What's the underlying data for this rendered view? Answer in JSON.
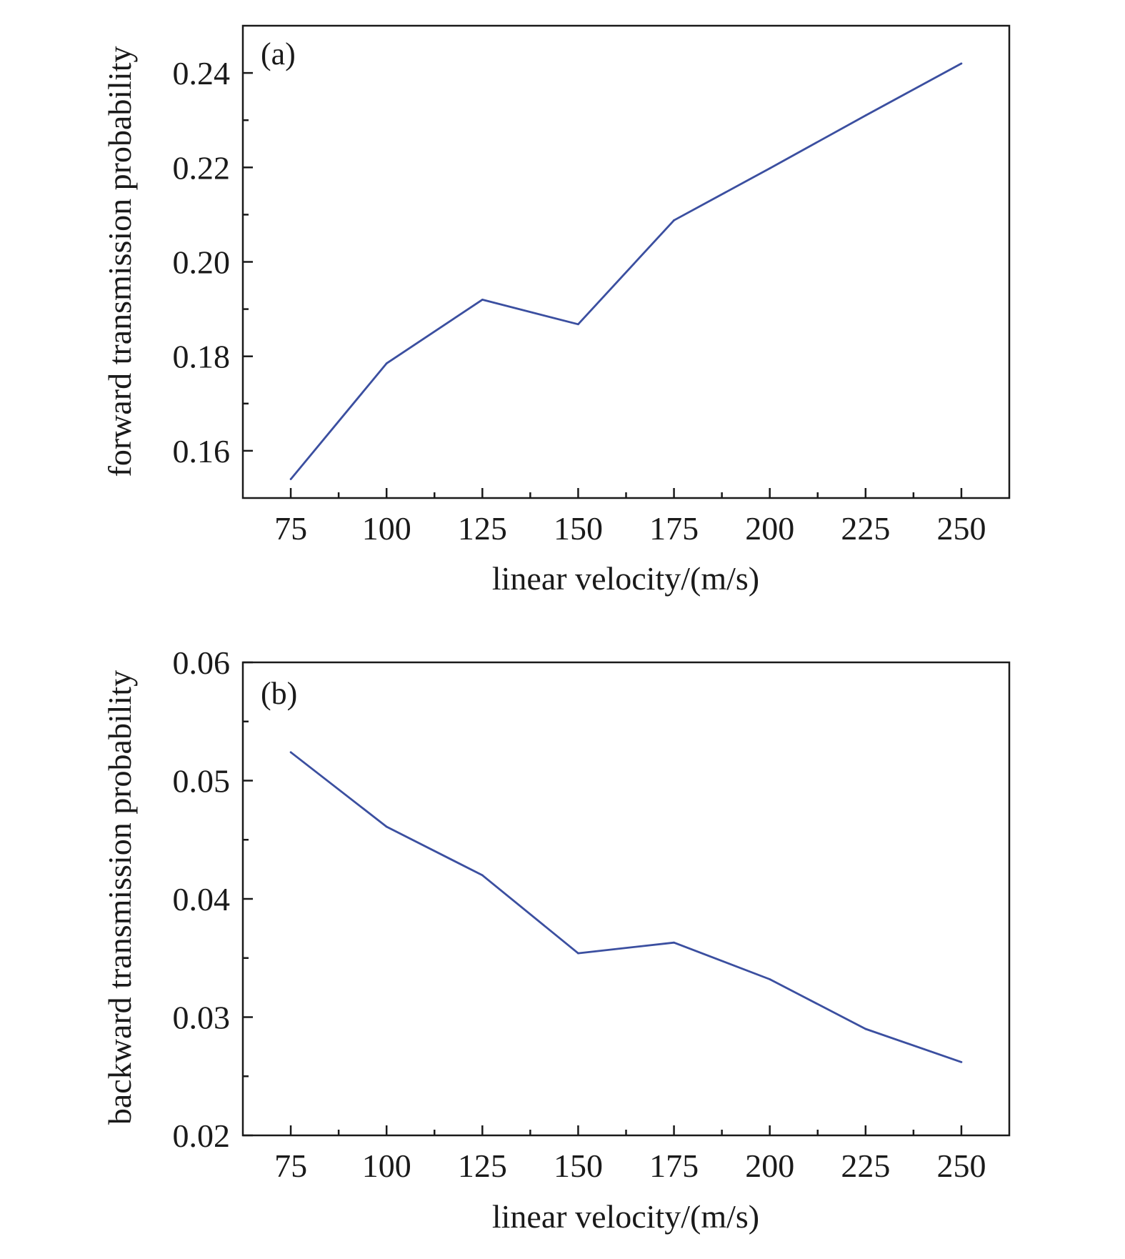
{
  "chart_data": [
    {
      "type": "line",
      "panel_label": "(a)",
      "xlabel": "linear velocity/(m/s)",
      "ylabel": "forward transmission probability",
      "x": [
        75,
        100,
        125,
        150,
        175,
        200,
        225,
        250
      ],
      "series": [
        {
          "values": [
            0.154,
            0.1785,
            0.192,
            0.1868,
            0.2088,
            0.2198,
            0.231,
            0.242
          ]
        }
      ],
      "xlim": [
        62.5,
        262.5
      ],
      "ylim": [
        0.15,
        0.25
      ],
      "xticks": [
        "75",
        "100",
        "125",
        "150",
        "175",
        "200",
        "225",
        "250"
      ],
      "yticks": [
        "0.16",
        "0.18",
        "0.20",
        "0.22",
        "0.24"
      ],
      "ytick_values": [
        0.16,
        0.18,
        0.2,
        0.22,
        0.24
      ],
      "yminor_values": [
        0.17,
        0.19,
        0.21,
        0.23
      ],
      "grid": false,
      "line_color": "#3b4fa0"
    },
    {
      "type": "line",
      "panel_label": "(b)",
      "xlabel": "linear velocity/(m/s)",
      "ylabel": "backward transmission probability",
      "x": [
        75,
        100,
        125,
        150,
        175,
        200,
        225,
        250
      ],
      "series": [
        {
          "values": [
            0.0524,
            0.0461,
            0.042,
            0.0354,
            0.0363,
            0.0332,
            0.029,
            0.0262
          ]
        }
      ],
      "xlim": [
        62.5,
        262.5
      ],
      "ylim": [
        0.02,
        0.06
      ],
      "xticks": [
        "75",
        "100",
        "125",
        "150",
        "175",
        "200",
        "225",
        "250"
      ],
      "yticks": [
        "0.02",
        "0.03",
        "0.04",
        "0.05",
        "0.06"
      ],
      "ytick_values": [
        0.02,
        0.03,
        0.04,
        0.05,
        0.06
      ],
      "yminor_values": [
        0.025,
        0.035,
        0.045,
        0.055
      ],
      "grid": false,
      "line_color": "#3b4fa0"
    }
  ]
}
